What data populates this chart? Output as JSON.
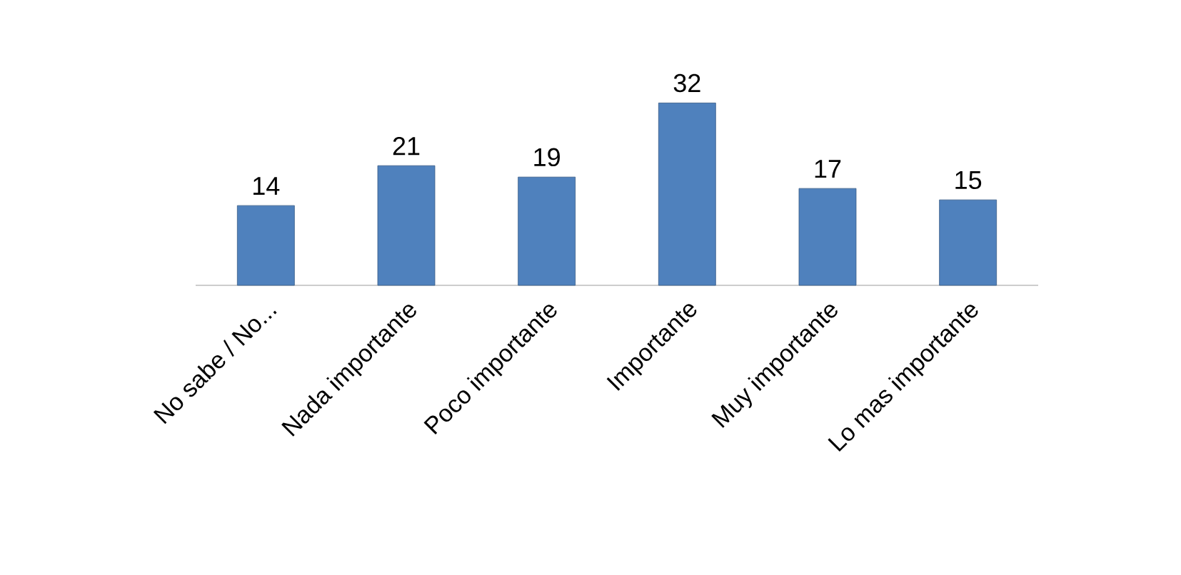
{
  "chart_data": {
    "type": "bar",
    "categories": [
      "No sabe / No...",
      "Nada importante",
      "Poco importante",
      "Importante",
      "Muy importante",
      "Lo mas importante"
    ],
    "values": [
      14,
      21,
      19,
      32,
      17,
      15
    ],
    "color": "#4f81bd",
    "data_labels": true
  }
}
